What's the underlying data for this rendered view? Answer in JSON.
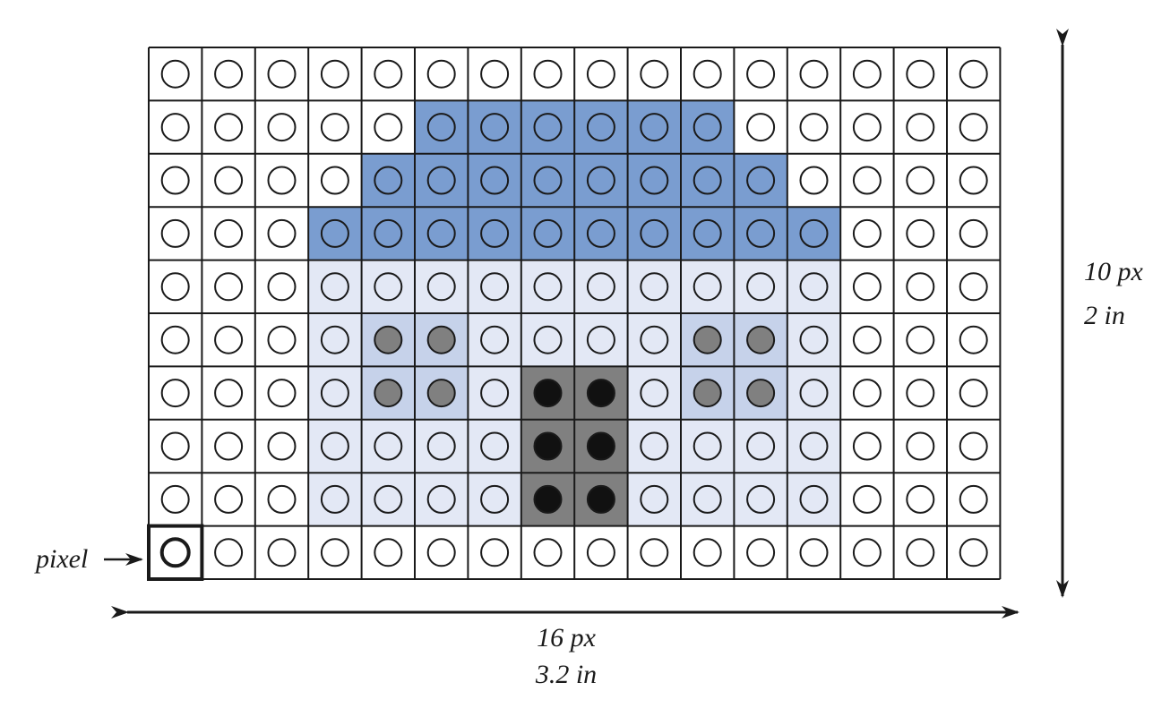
{
  "grid": {
    "columns": 16,
    "rows": 10,
    "cell_fill_codes": [
      "WWWWWWWWWWWWWWWW",
      "WWWWWBBBBBBWWWWW",
      "WWWWBBBBBBBBWWWW",
      "WWWBBBBBBBBBBWWW",
      "WWWLLLLLLLLLLWWW",
      "WWWLMMLLLLMMLWWW",
      "WWWLMMLGGLMMLWWW",
      "WWWLLLLGGLLLLWWW",
      "WWWLLLLGGLLLLWWW",
      "WWWWWWWWWWWWWWWW"
    ],
    "dot_fill_codes": [
      "WWWWWWWWWWWWWWWW",
      "WWWWWBBBBBBWWWWW",
      "WWWWBBBBBBBBWWWW",
      "WWWBBBBBBBBBBWWW",
      "WWWLLLLLLLLLLWWW",
      "WWWLDDLLLLDDLWWW",
      "WWWLDDLKKLDDLWWW",
      "WWWLLLLKKLLLLWWW",
      "WWWLLLLKKLLLLWWW",
      "WWWWWWWWWWWWWWWW"
    ],
    "palette": {
      "W": "#ffffff",
      "B": "#7a9dd0",
      "L": "#e3e8f5",
      "M": "#c6d2ea",
      "G": "#808080",
      "D": "#808080",
      "K": "#111111"
    },
    "highlighted_pixel": {
      "row": 9,
      "col": 0
    }
  },
  "labels": {
    "pixel": "pixel",
    "width_px": "16 px",
    "width_in": "3.2 in",
    "height_px": "10 px",
    "height_in": "2 in"
  }
}
